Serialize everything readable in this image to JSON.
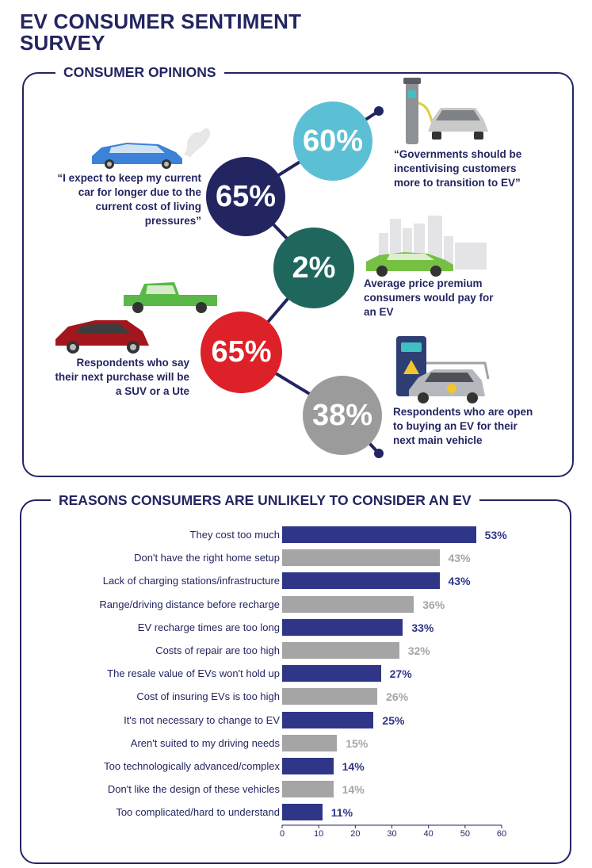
{
  "title": "EV CONSUMER SENTIMENT SURVEY",
  "opinions": {
    "section_title": "CONSUMER OPINIONS",
    "items": [
      {
        "value": "65%",
        "caption": "“I expect to keep my current car for longer due to the current cost of living pressures”"
      },
      {
        "value": "60%",
        "caption": "“Governments should be incentivising customers more to transition to EV”"
      },
      {
        "value": "2%",
        "caption": "Average price premium consumers would pay for an EV"
      },
      {
        "value": "65%",
        "caption": "Respondents who say their next purchase will be a SUV or a Ute"
      },
      {
        "value": "38%",
        "caption": "Respondents who are open to buying an EV for their next main vehicle"
      }
    ]
  },
  "colors": {
    "navy": "#232561",
    "teal": "#5cc0d5",
    "green": "#1f665d",
    "red": "#dd2129",
    "gray": "#9b9b9b",
    "bar_blue": "#2f3688",
    "bar_gray": "#a5a5a5"
  },
  "chart_data": {
    "type": "bar",
    "orientation": "horizontal",
    "title": "REASONS CONSUMERS ARE UNLIKELY TO CONSIDER AN EV",
    "categories": [
      "They cost too much",
      "Don't have the right home setup",
      "Lack of charging stations/infrastructure",
      "Range/driving distance before recharge",
      "EV recharge times are too long",
      "Costs of repair are too high",
      "The resale value of EVs won't hold up",
      "Cost of insuring EVs is too high",
      "It's not necessary to change to EV",
      "Aren't suited to my driving needs",
      "Too technologically advanced/complex",
      "Don't like the design of these vehicles",
      "Too complicated/hard to understand"
    ],
    "values": [
      53,
      43,
      43,
      36,
      33,
      32,
      27,
      26,
      25,
      15,
      14,
      14,
      11
    ],
    "value_labels": [
      "53%",
      "43%",
      "43%",
      "36%",
      "33%",
      "32%",
      "27%",
      "26%",
      "25%",
      "15%",
      "14%",
      "14%",
      "11%"
    ],
    "bar_colors": [
      "blue",
      "gray",
      "blue",
      "gray",
      "blue",
      "gray",
      "blue",
      "gray",
      "blue",
      "gray",
      "blue",
      "gray",
      "blue"
    ],
    "xlim": [
      0,
      60
    ],
    "xticks": [
      0,
      10,
      20,
      30,
      40,
      50,
      60
    ]
  }
}
